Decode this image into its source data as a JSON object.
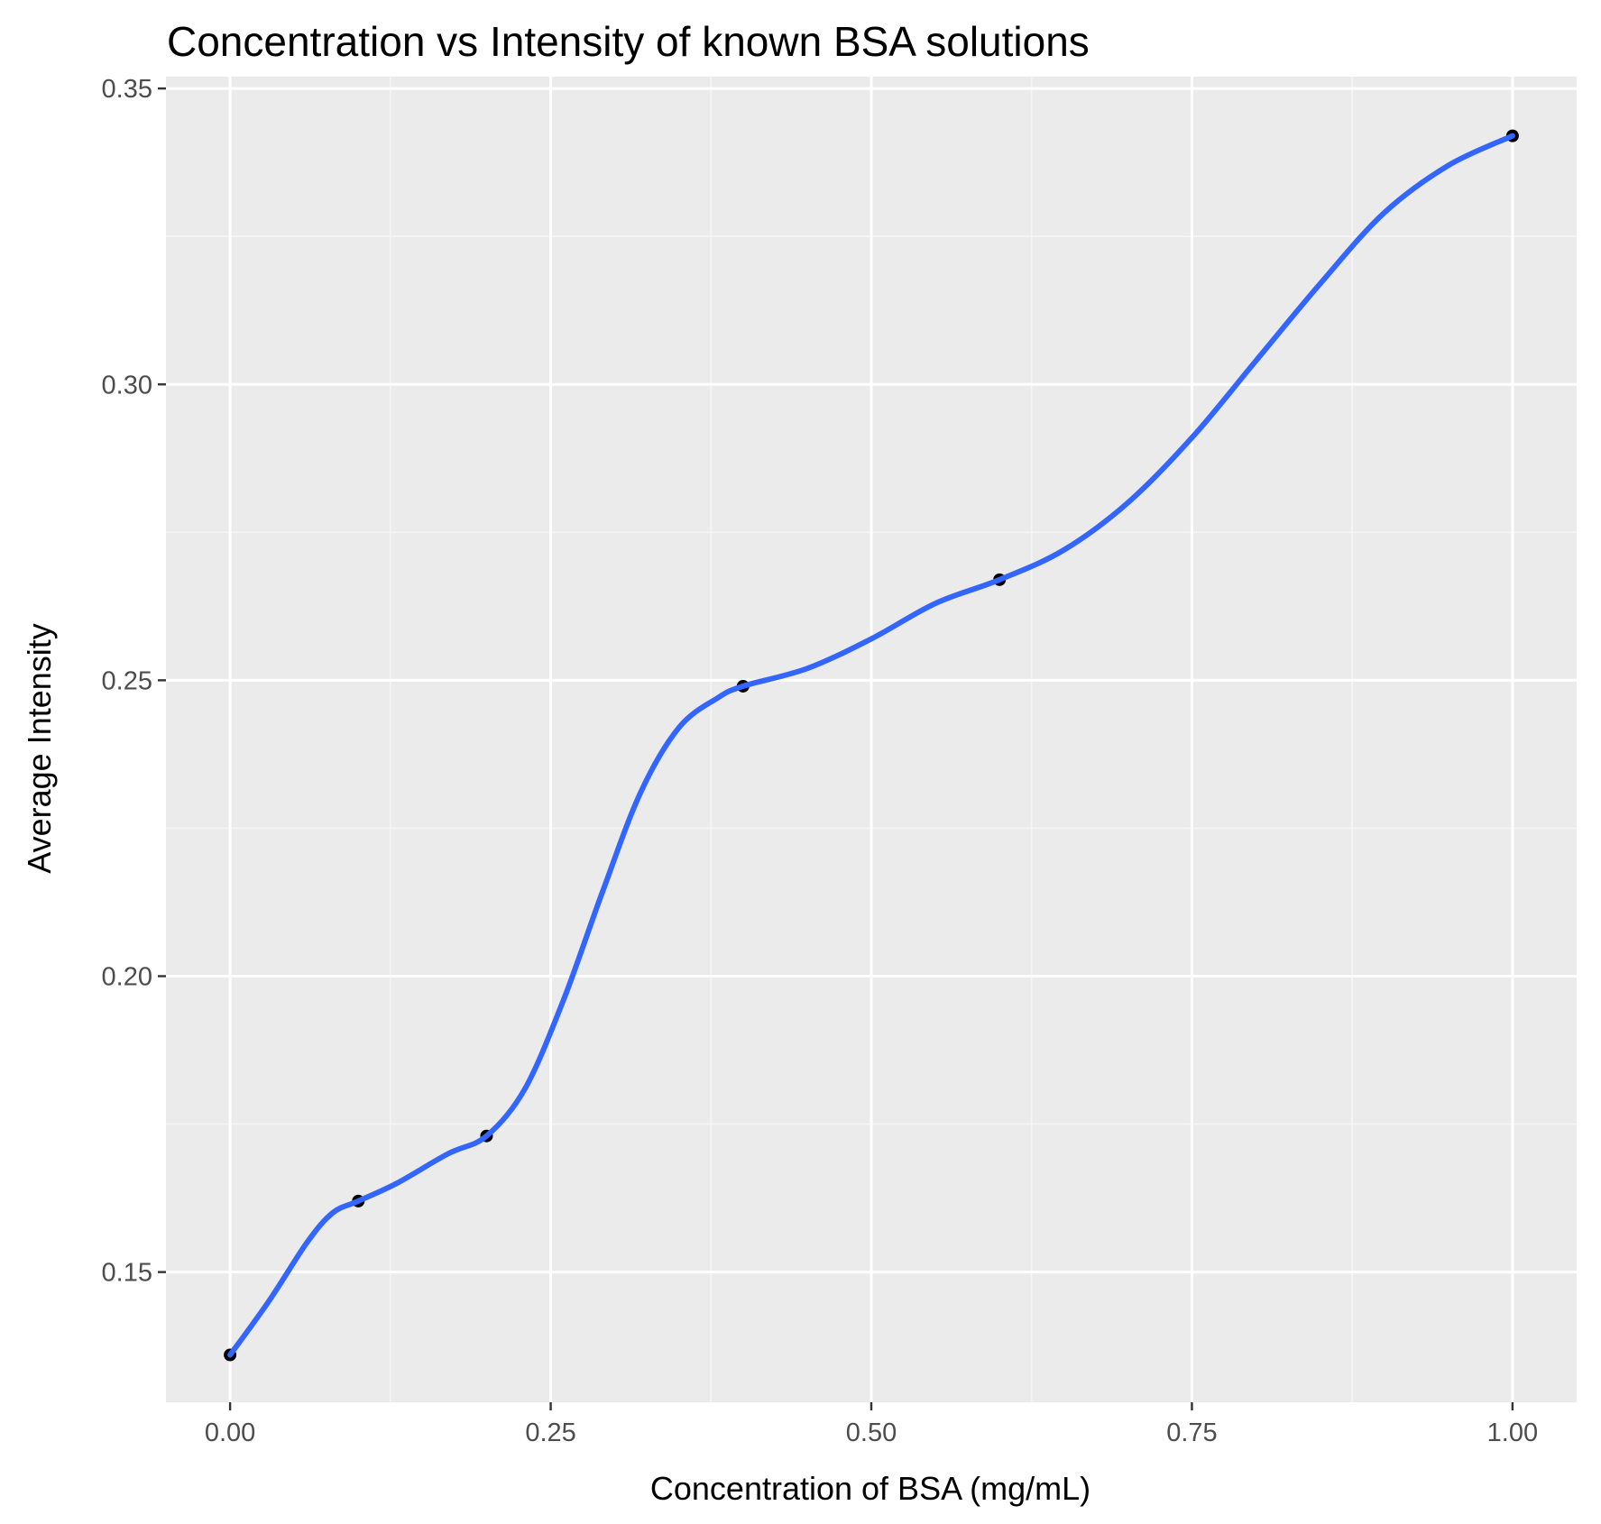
{
  "chart_data": {
    "type": "scatter",
    "title": "Concentration vs Intensity of known BSA solutions",
    "xlabel": "Concentration of BSA (mg/mL)",
    "ylabel": "Average Intensity",
    "xlim": [
      -0.05,
      1.05
    ],
    "ylim": [
      0.128,
      0.352
    ],
    "x_ticks": [
      0.0,
      0.25,
      0.5,
      0.75,
      1.0
    ],
    "x_tick_labels": [
      "0.00",
      "0.25",
      "0.50",
      "0.75",
      "1.00"
    ],
    "y_ticks": [
      0.15,
      0.2,
      0.25,
      0.3,
      0.35
    ],
    "y_tick_labels": [
      "0.15",
      "0.20",
      "0.25",
      "0.30",
      "0.35"
    ],
    "grid": true,
    "points": [
      {
        "x": 0.0,
        "y": 0.136
      },
      {
        "x": 0.1,
        "y": 0.162
      },
      {
        "x": 0.2,
        "y": 0.173
      },
      {
        "x": 0.4,
        "y": 0.249
      },
      {
        "x": 0.6,
        "y": 0.267
      },
      {
        "x": 1.0,
        "y": 0.342
      }
    ],
    "smooth_line": {
      "color": "#3366ff",
      "x": [
        0.0,
        0.03,
        0.06,
        0.08,
        0.1,
        0.13,
        0.17,
        0.2,
        0.23,
        0.26,
        0.29,
        0.32,
        0.35,
        0.38,
        0.4,
        0.45,
        0.5,
        0.55,
        0.6,
        0.65,
        0.7,
        0.75,
        0.8,
        0.85,
        0.9,
        0.95,
        1.0
      ],
      "y": [
        0.136,
        0.145,
        0.155,
        0.16,
        0.162,
        0.165,
        0.17,
        0.173,
        0.181,
        0.196,
        0.214,
        0.231,
        0.242,
        0.247,
        0.249,
        0.252,
        0.257,
        0.263,
        0.267,
        0.272,
        0.28,
        0.291,
        0.304,
        0.317,
        0.329,
        0.337,
        0.342
      ]
    },
    "colors": {
      "panel": "#ebebeb",
      "grid_major": "#ffffff",
      "grid_minor": "#f5f5f5",
      "point": "#000000",
      "line": "#3366ff"
    }
  }
}
